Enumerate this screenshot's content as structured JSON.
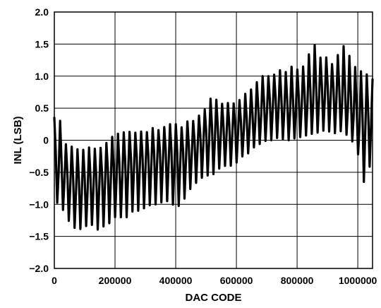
{
  "chart_data": {
    "type": "line",
    "title": "",
    "xlabel": "DAC CODE",
    "ylabel": "INL (LSB)",
    "xlim": [
      0,
      1048576
    ],
    "ylim": [
      -2.0,
      2.0
    ],
    "grid": true,
    "x_ticks": [
      0,
      200000,
      400000,
      600000,
      800000,
      1000000
    ],
    "x_tick_labels": [
      "0",
      "200000",
      "400000",
      "600000",
      "800000",
      "1000000"
    ],
    "y_ticks": [
      2.0,
      1.5,
      1.0,
      0.5,
      0,
      -0.5,
      -1.0,
      -1.5,
      -2.0
    ],
    "y_tick_labels": [
      "2.0",
      "1.5",
      "1.0",
      "0.5",
      "0",
      "−0.5",
      "−1.0",
      "−1.5",
      "−2.0"
    ],
    "series": [
      {
        "color": "#000000",
        "x": [
          0,
          20000,
          40000,
          60000,
          80000,
          100000,
          120000,
          140000,
          160000,
          180000,
          200000,
          220000,
          240000,
          260000,
          280000,
          300000,
          320000,
          340000,
          360000,
          380000,
          400000,
          420000,
          440000,
          460000,
          480000,
          500000,
          520000,
          540000,
          560000,
          580000,
          600000,
          620000,
          640000,
          660000,
          680000,
          700000,
          720000,
          740000,
          760000,
          780000,
          800000,
          820000,
          840000,
          860000,
          880000,
          900000,
          920000,
          940000,
          960000,
          980000,
          1000000,
          1020000,
          1040000,
          1048575
        ],
        "y_mid": [
          -0.3,
          -0.45,
          -0.6,
          -0.7,
          -0.75,
          -0.72,
          -0.7,
          -0.7,
          -0.65,
          -0.58,
          -0.55,
          -0.5,
          -0.45,
          -0.4,
          -0.4,
          -0.38,
          -0.35,
          -0.3,
          -0.28,
          -0.3,
          -0.35,
          -0.3,
          -0.22,
          -0.15,
          -0.05,
          0.02,
          0.08,
          0.1,
          0.1,
          0.12,
          0.15,
          0.2,
          0.25,
          0.35,
          0.45,
          0.5,
          0.55,
          0.55,
          0.52,
          0.5,
          0.55,
          0.6,
          0.65,
          0.7,
          0.72,
          0.72,
          0.7,
          0.68,
          0.65,
          0.55,
          0.35,
          0.25,
          0.3,
          0.35
        ],
        "y_max": [
          0.35,
          0.3,
          -0.1,
          -0.1,
          -0.15,
          -0.15,
          -0.1,
          -0.15,
          -0.1,
          0.0,
          0.1,
          0.1,
          0.15,
          0.1,
          0.15,
          0.1,
          0.2,
          0.15,
          0.2,
          0.25,
          0.25,
          0.2,
          0.3,
          0.3,
          0.4,
          0.5,
          0.7,
          0.6,
          0.55,
          0.6,
          0.55,
          0.7,
          0.75,
          0.85,
          1.0,
          1.0,
          1.0,
          1.1,
          1.05,
          1.15,
          1.1,
          1.15,
          1.35,
          1.5,
          1.25,
          1.3,
          1.15,
          1.4,
          1.5,
          1.2,
          1.1,
          1.05,
          1.0,
          0.95
        ],
        "y_min": [
          -0.95,
          -1.0,
          -1.2,
          -1.35,
          -1.4,
          -1.35,
          -1.3,
          -1.4,
          -1.35,
          -1.3,
          -1.2,
          -1.2,
          -1.2,
          -1.1,
          -1.1,
          -1.05,
          -1.0,
          -1.0,
          -0.95,
          -0.95,
          -1.05,
          -1.0,
          -0.8,
          -0.7,
          -0.6,
          -0.55,
          -0.55,
          -0.45,
          -0.4,
          -0.4,
          -0.35,
          -0.25,
          -0.2,
          -0.1,
          -0.05,
          0.0,
          0.0,
          0.05,
          0.0,
          0.0,
          0.05,
          0.05,
          0.1,
          0.1,
          0.15,
          0.15,
          0.1,
          0.15,
          0.1,
          0.0,
          -0.2,
          -0.65,
          -0.4,
          -0.4
        ]
      }
    ]
  }
}
